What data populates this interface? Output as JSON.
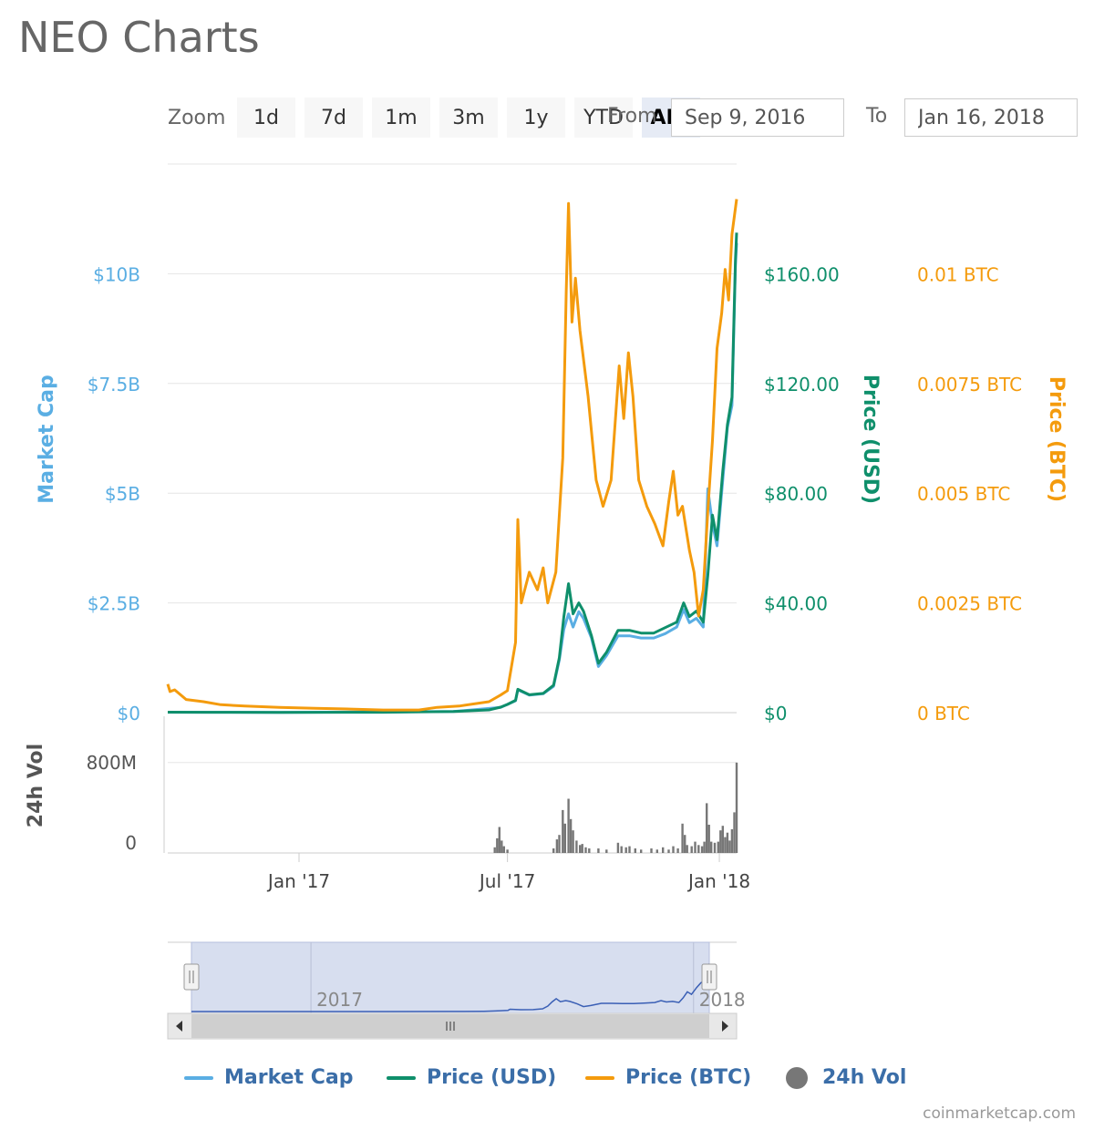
{
  "title": "NEO Charts",
  "zoom": {
    "label": "Zoom",
    "buttons": [
      "1d",
      "7d",
      "1m",
      "3m",
      "1y",
      "YTD",
      "ALL"
    ],
    "active": "ALL"
  },
  "range": {
    "from_label": "From",
    "from_value": "Sep 9, 2016",
    "to_label": "To",
    "to_value": "Jan 16, 2018"
  },
  "legend": {
    "market_cap": "Market Cap",
    "price_usd": "Price (USD)",
    "price_btc": "Price (BTC)",
    "vol": "24h Vol"
  },
  "credit": "coinmarketcap.com",
  "colors": {
    "market_cap": "#5aaee3",
    "price_usd": "#0f8f6b",
    "price_btc": "#f49b0d",
    "volume": "#777777",
    "navigator_fill": "#d3daed",
    "navigator_line": "#3a5fb5"
  },
  "chart_data": {
    "type": "line",
    "x_range": [
      "2016-09-09",
      "2018-01-16"
    ],
    "axes": {
      "market_cap": {
        "title": "Market Cap",
        "ticks": [
          "$0",
          "$2.5B",
          "$5B",
          "$7.5B",
          "$10B"
        ],
        "tick_values": [
          0,
          2500000000,
          5000000000,
          7500000000,
          10000000000
        ],
        "ylim": [
          0,
          12500000000
        ]
      },
      "price_usd": {
        "title": "Price (USD)",
        "ticks": [
          "$0",
          "$40.00",
          "$80.00",
          "$120.00",
          "$160.00"
        ],
        "tick_values": [
          0,
          40,
          80,
          120,
          160
        ],
        "ylim": [
          0,
          200
        ]
      },
      "price_btc": {
        "title": "Price (BTC)",
        "ticks": [
          "0 BTC",
          "0.0025 BTC",
          "0.005 BTC",
          "0.0075 BTC",
          "0.01 BTC"
        ],
        "tick_values": [
          0,
          0.0025,
          0.005,
          0.0075,
          0.01
        ],
        "ylim": [
          0,
          0.0125
        ]
      },
      "volume": {
        "title": "24h Vol",
        "ticks": [
          "0",
          "800M"
        ],
        "tick_values": [
          0,
          800000000
        ],
        "ylim": [
          0,
          1000000000
        ]
      }
    },
    "x_ticks": [
      {
        "date": "2017-01-01",
        "label": "Jan '17"
      },
      {
        "date": "2017-07-01",
        "label": "Jul '17"
      },
      {
        "date": "2018-01-01",
        "label": "Jan '18"
      }
    ],
    "navigator_ticks": [
      {
        "date": "2017-01-01",
        "label": "2017"
      },
      {
        "date": "2018-01-01",
        "label": "2018"
      }
    ],
    "series": [
      {
        "name": "Price (BTC)",
        "axis": "price_btc",
        "points": [
          [
            "2016-09-09",
            0.00065
          ],
          [
            "2016-09-11",
            0.00048
          ],
          [
            "2016-09-15",
            0.00052
          ],
          [
            "2016-09-25",
            0.0003
          ],
          [
            "2016-10-10",
            0.00025
          ],
          [
            "2016-10-25",
            0.00018
          ],
          [
            "2016-11-15",
            0.00015
          ],
          [
            "2016-12-15",
            0.00012
          ],
          [
            "2017-01-15",
            0.0001
          ],
          [
            "2017-02-15",
            8e-05
          ],
          [
            "2017-03-15",
            6e-05
          ],
          [
            "2017-04-15",
            6e-05
          ],
          [
            "2017-05-01",
            0.00012
          ],
          [
            "2017-05-20",
            0.00015
          ],
          [
            "2017-06-15",
            0.00025
          ],
          [
            "2017-06-25",
            0.0004
          ],
          [
            "2017-07-01",
            0.0005
          ],
          [
            "2017-07-08",
            0.0016
          ],
          [
            "2017-07-10",
            0.0044
          ],
          [
            "2017-07-13",
            0.0025
          ],
          [
            "2017-07-20",
            0.0032
          ],
          [
            "2017-07-27",
            0.0028
          ],
          [
            "2017-08-01",
            0.0033
          ],
          [
            "2017-08-05",
            0.0025
          ],
          [
            "2017-08-12",
            0.0032
          ],
          [
            "2017-08-18",
            0.0058
          ],
          [
            "2017-08-21",
            0.0096
          ],
          [
            "2017-08-23",
            0.0116
          ],
          [
            "2017-08-26",
            0.0089
          ],
          [
            "2017-08-29",
            0.0099
          ],
          [
            "2017-09-02",
            0.0087
          ],
          [
            "2017-09-09",
            0.0072
          ],
          [
            "2017-09-16",
            0.0053
          ],
          [
            "2017-09-22",
            0.0047
          ],
          [
            "2017-09-29",
            0.0053
          ],
          [
            "2017-10-06",
            0.0079
          ],
          [
            "2017-10-10",
            0.0067
          ],
          [
            "2017-10-14",
            0.0082
          ],
          [
            "2017-10-18",
            0.0072
          ],
          [
            "2017-10-23",
            0.0053
          ],
          [
            "2017-10-30",
            0.0047
          ],
          [
            "2017-11-06",
            0.0043
          ],
          [
            "2017-11-13",
            0.0038
          ],
          [
            "2017-11-18",
            0.0048
          ],
          [
            "2017-11-22",
            0.0055
          ],
          [
            "2017-11-26",
            0.0045
          ],
          [
            "2017-11-30",
            0.0047
          ],
          [
            "2017-12-06",
            0.0037
          ],
          [
            "2017-12-10",
            0.0032
          ],
          [
            "2017-12-14",
            0.0022
          ],
          [
            "2017-12-18",
            0.0028
          ],
          [
            "2017-12-22",
            0.0046
          ],
          [
            "2017-12-26",
            0.0062
          ],
          [
            "2017-12-30",
            0.0083
          ],
          [
            "2018-01-03",
            0.0091
          ],
          [
            "2018-01-06",
            0.0101
          ],
          [
            "2018-01-09",
            0.0094
          ],
          [
            "2018-01-12",
            0.0109
          ],
          [
            "2018-01-16",
            0.0117
          ]
        ]
      },
      {
        "name": "Price (USD)",
        "axis": "price_usd",
        "points": [
          [
            "2016-09-09",
            0.15
          ],
          [
            "2016-10-15",
            0.12
          ],
          [
            "2016-12-15",
            0.1
          ],
          [
            "2017-03-15",
            0.12
          ],
          [
            "2017-05-15",
            0.4
          ],
          [
            "2017-06-15",
            1.0
          ],
          [
            "2017-06-25",
            2.0
          ],
          [
            "2017-07-01",
            3.0
          ],
          [
            "2017-07-08",
            4.5
          ],
          [
            "2017-07-10",
            8.5
          ],
          [
            "2017-07-20",
            6.5
          ],
          [
            "2017-08-01",
            7.0
          ],
          [
            "2017-08-10",
            10.0
          ],
          [
            "2017-08-15",
            20.0
          ],
          [
            "2017-08-19",
            35.0
          ],
          [
            "2017-08-23",
            47.0
          ],
          [
            "2017-08-27",
            36.0
          ],
          [
            "2017-09-01",
            40.0
          ],
          [
            "2017-09-05",
            37.0
          ],
          [
            "2017-09-12",
            28.0
          ],
          [
            "2017-09-18",
            18.0
          ],
          [
            "2017-09-25",
            22.0
          ],
          [
            "2017-10-05",
            30.0
          ],
          [
            "2017-10-15",
            30.0
          ],
          [
            "2017-10-25",
            29.0
          ],
          [
            "2017-11-05",
            29.0
          ],
          [
            "2017-11-15",
            31.0
          ],
          [
            "2017-11-25",
            33.0
          ],
          [
            "2017-12-01",
            40.0
          ],
          [
            "2017-12-06",
            35.0
          ],
          [
            "2017-12-12",
            37.0
          ],
          [
            "2017-12-18",
            33.0
          ],
          [
            "2017-12-22",
            50.0
          ],
          [
            "2017-12-26",
            72.0
          ],
          [
            "2017-12-30",
            63.0
          ],
          [
            "2018-01-04",
            88.0
          ],
          [
            "2018-01-08",
            105.0
          ],
          [
            "2018-01-12",
            115.0
          ],
          [
            "2018-01-15",
            165.0
          ],
          [
            "2018-01-16",
            175.0
          ]
        ]
      },
      {
        "name": "Market Cap",
        "axis": "market_cap",
        "points": [
          [
            "2016-09-09",
            9000000
          ],
          [
            "2016-12-15",
            6000000
          ],
          [
            "2017-05-15",
            24000000
          ],
          [
            "2017-06-25",
            120000000
          ],
          [
            "2017-07-08",
            270000000
          ],
          [
            "2017-07-10",
            520000000
          ],
          [
            "2017-07-20",
            400000000
          ],
          [
            "2017-08-01",
            430000000
          ],
          [
            "2017-08-10",
            600000000
          ],
          [
            "2017-08-15",
            1200000000
          ],
          [
            "2017-08-19",
            1900000000
          ],
          [
            "2017-08-23",
            2250000000
          ],
          [
            "2017-08-27",
            1950000000
          ],
          [
            "2017-09-01",
            2300000000
          ],
          [
            "2017-09-05",
            2150000000
          ],
          [
            "2017-09-12",
            1700000000
          ],
          [
            "2017-09-18",
            1050000000
          ],
          [
            "2017-09-25",
            1300000000
          ],
          [
            "2017-10-05",
            1750000000
          ],
          [
            "2017-10-15",
            1750000000
          ],
          [
            "2017-10-25",
            1700000000
          ],
          [
            "2017-11-05",
            1700000000
          ],
          [
            "2017-11-15",
            1800000000
          ],
          [
            "2017-11-25",
            1950000000
          ],
          [
            "2017-12-01",
            2350000000
          ],
          [
            "2017-12-06",
            2050000000
          ],
          [
            "2017-12-12",
            2150000000
          ],
          [
            "2017-12-18",
            1950000000
          ],
          [
            "2017-12-22",
            5100000000
          ],
          [
            "2017-12-26",
            4300000000
          ],
          [
            "2017-12-30",
            3800000000
          ],
          [
            "2018-01-04",
            5300000000
          ],
          [
            "2018-01-08",
            6500000000
          ],
          [
            "2018-01-12",
            7000000000
          ],
          [
            "2018-01-15",
            10200000000
          ],
          [
            "2018-01-16",
            10700000000
          ]
        ]
      },
      {
        "name": "24h Vol",
        "axis": "volume",
        "type": "bar",
        "points": [
          [
            "2017-06-20",
            50000000
          ],
          [
            "2017-06-22",
            130000000
          ],
          [
            "2017-06-24",
            230000000
          ],
          [
            "2017-06-26",
            110000000
          ],
          [
            "2017-06-28",
            60000000
          ],
          [
            "2017-07-01",
            30000000
          ],
          [
            "2017-08-10",
            40000000
          ],
          [
            "2017-08-13",
            120000000
          ],
          [
            "2017-08-15",
            160000000
          ],
          [
            "2017-08-18",
            380000000
          ],
          [
            "2017-08-20",
            260000000
          ],
          [
            "2017-08-23",
            480000000
          ],
          [
            "2017-08-25",
            300000000
          ],
          [
            "2017-08-27",
            200000000
          ],
          [
            "2017-08-30",
            110000000
          ],
          [
            "2017-09-02",
            70000000
          ],
          [
            "2017-09-04",
            80000000
          ],
          [
            "2017-09-07",
            50000000
          ],
          [
            "2017-09-10",
            40000000
          ],
          [
            "2017-09-18",
            40000000
          ],
          [
            "2017-09-25",
            30000000
          ],
          [
            "2017-10-05",
            90000000
          ],
          [
            "2017-10-08",
            60000000
          ],
          [
            "2017-10-12",
            50000000
          ],
          [
            "2017-10-15",
            60000000
          ],
          [
            "2017-10-20",
            40000000
          ],
          [
            "2017-10-25",
            30000000
          ],
          [
            "2017-11-03",
            40000000
          ],
          [
            "2017-11-08",
            30000000
          ],
          [
            "2017-11-13",
            50000000
          ],
          [
            "2017-11-18",
            30000000
          ],
          [
            "2017-11-22",
            60000000
          ],
          [
            "2017-11-26",
            40000000
          ],
          [
            "2017-11-30",
            260000000
          ],
          [
            "2017-12-02",
            160000000
          ],
          [
            "2017-12-04",
            70000000
          ],
          [
            "2017-12-08",
            60000000
          ],
          [
            "2017-12-11",
            100000000
          ],
          [
            "2017-12-14",
            70000000
          ],
          [
            "2017-12-17",
            60000000
          ],
          [
            "2017-12-19",
            100000000
          ],
          [
            "2017-12-21",
            440000000
          ],
          [
            "2017-12-23",
            250000000
          ],
          [
            "2017-12-25",
            100000000
          ],
          [
            "2017-12-28",
            90000000
          ],
          [
            "2017-12-31",
            100000000
          ],
          [
            "2018-01-02",
            200000000
          ],
          [
            "2018-01-04",
            240000000
          ],
          [
            "2018-01-06",
            140000000
          ],
          [
            "2018-01-08",
            180000000
          ],
          [
            "2018-01-10",
            110000000
          ],
          [
            "2018-01-12",
            210000000
          ],
          [
            "2018-01-14",
            360000000
          ],
          [
            "2018-01-16",
            800000000
          ]
        ]
      }
    ]
  }
}
